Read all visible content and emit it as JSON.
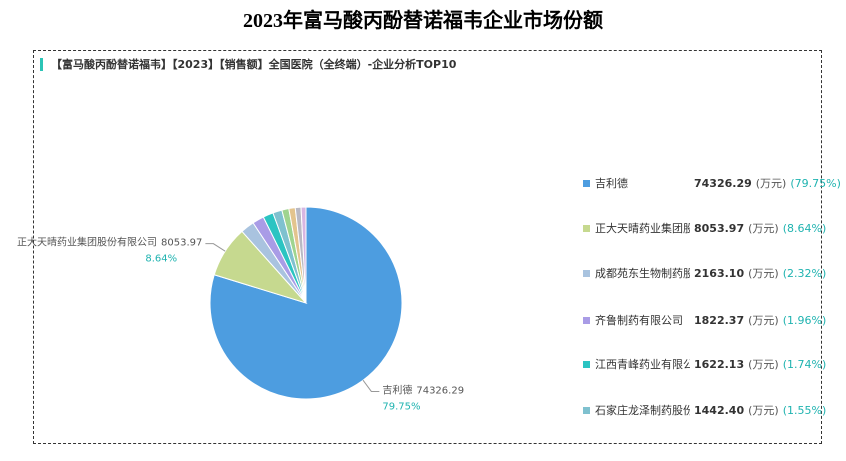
{
  "chart_data": {
    "type": "pie",
    "title": "2023年富马酸丙酚替诺福韦企业市场份额",
    "subtitle": "【富马酸丙酚替诺福韦】【2023】【销售额】全国医院（全终端）-企业分析TOP10",
    "unit": "(万元)",
    "categories": [
      "吉利德",
      "正大天晴药业集团股份有限公司",
      "成都苑东生物制药股份有限公司",
      "齐鲁制药有限公司",
      "江西青峰药业有限公司",
      "石家庄龙泽制药股份有限公司",
      null,
      null,
      null,
      null
    ],
    "values": [
      74326.29,
      8053.97,
      2163.1,
      1822.37,
      1622.13,
      1442.4,
      1100,
      1000,
      900,
      770
    ],
    "value_labels": [
      "74326.29",
      "8053.97",
      "2163.10",
      "1822.37",
      "1622.13",
      "1442.40",
      null,
      null,
      null,
      null
    ],
    "legend_share_labels": [
      "(79.75%)",
      "(8.64%)",
      "(2.32%)",
      "(1.96%)",
      "(1.74%)",
      "(1.55%)",
      null,
      null,
      null,
      null
    ],
    "slice_share_labels": [
      "79.75%",
      "8.64%",
      null,
      null,
      null,
      null,
      null,
      null,
      null,
      null
    ],
    "colors": [
      "#4d9de0",
      "#c6d98f",
      "#a9c3df",
      "#a99ce6",
      "#2bc4c2",
      "#7fc1cf",
      "#9fd48f",
      "#e3c48e",
      "#b9b9c4",
      "#d7b6e2"
    ]
  }
}
